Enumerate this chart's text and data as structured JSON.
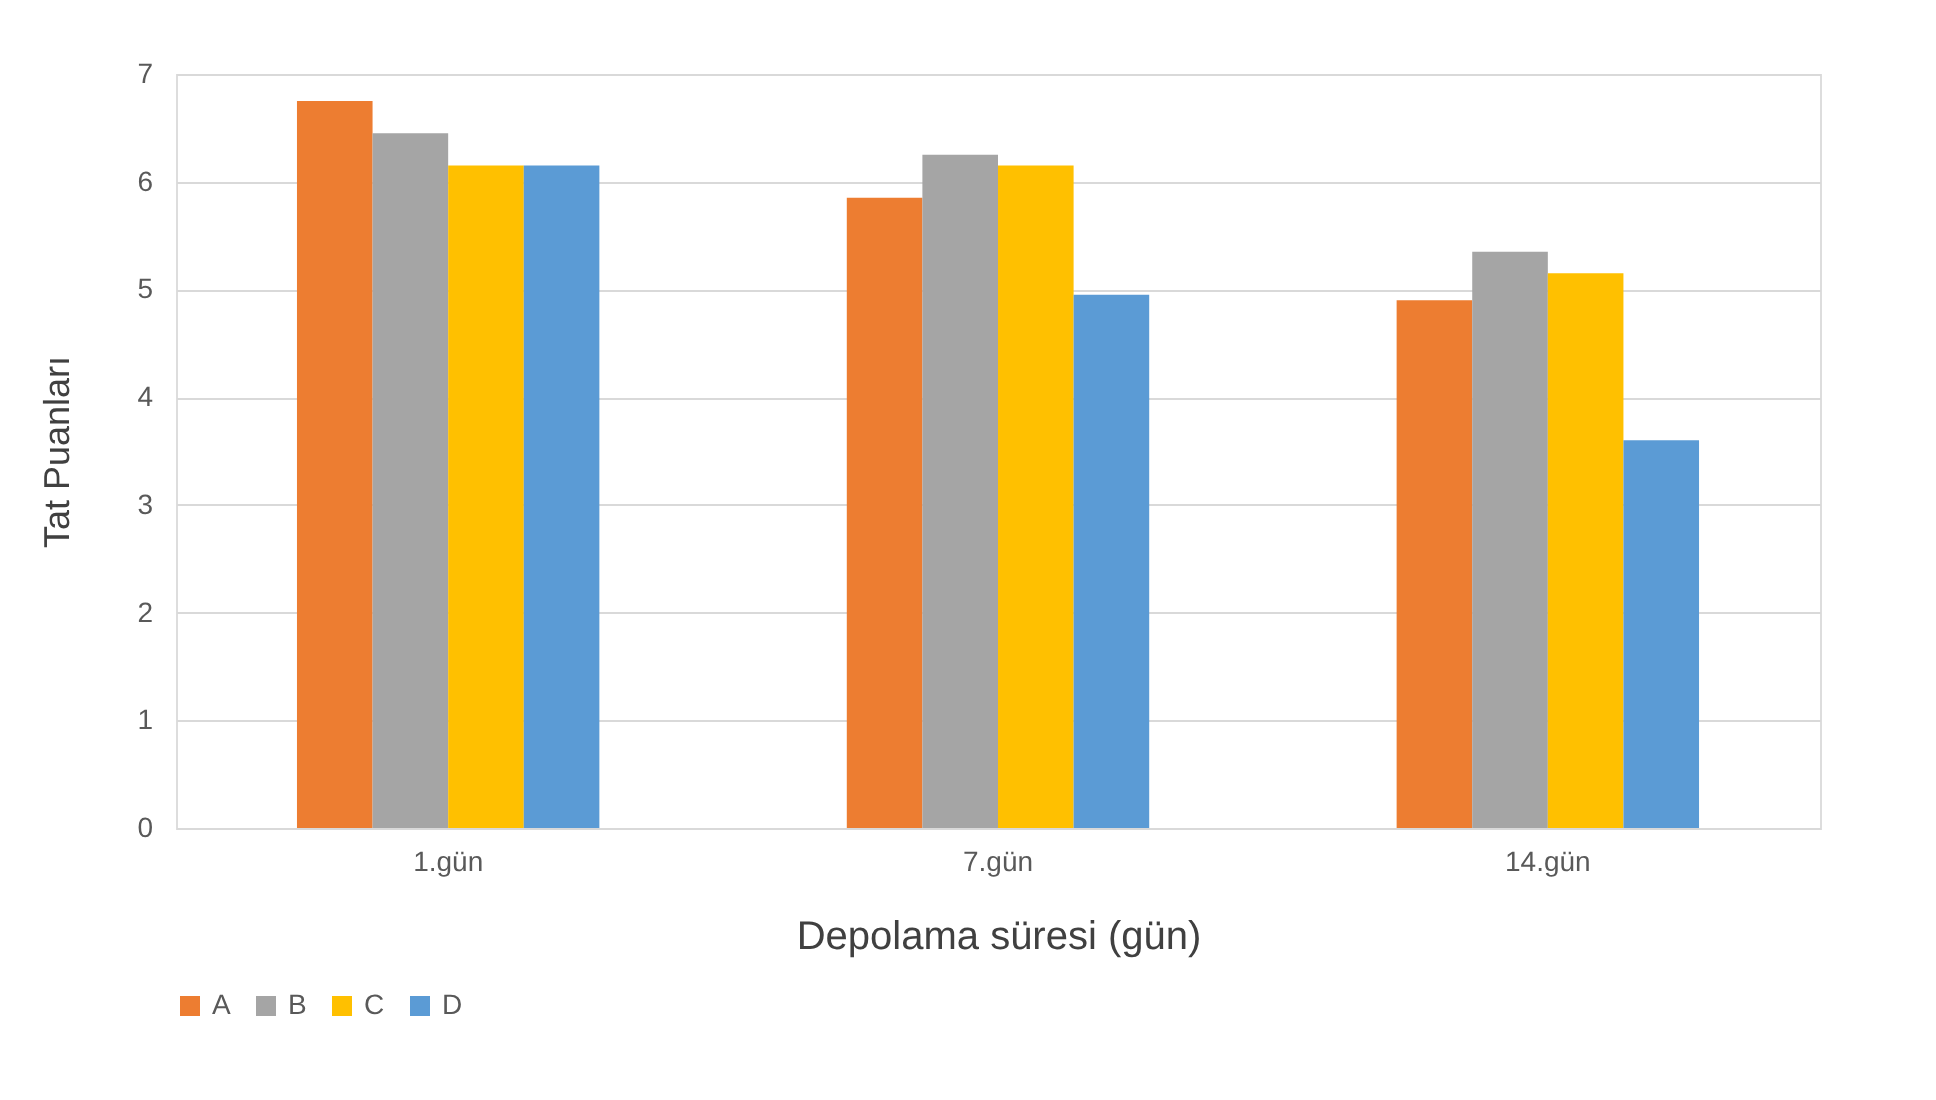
{
  "chart_data": {
    "type": "bar",
    "xlabel": "Depolama süresi (gün)",
    "ylabel": "Tat Puanları",
    "categories": [
      "1.gün",
      "7.gün",
      "14.gün"
    ],
    "series": [
      {
        "name": "A",
        "color": "#ed7d31",
        "values": [
          6.75,
          5.85,
          4.9
        ]
      },
      {
        "name": "B",
        "color": "#a5a5a5",
        "values": [
          6.45,
          6.25,
          5.35
        ]
      },
      {
        "name": "C",
        "color": "#ffc000",
        "values": [
          6.15,
          6.15,
          5.15
        ]
      },
      {
        "name": "D",
        "color": "#5b9bd5",
        "values": [
          6.15,
          4.95,
          3.6
        ]
      }
    ],
    "ylim": [
      0,
      7
    ],
    "yticks": [
      0,
      1,
      2,
      3,
      4,
      5,
      6,
      7
    ],
    "grid": "y",
    "legend": "bottom"
  }
}
